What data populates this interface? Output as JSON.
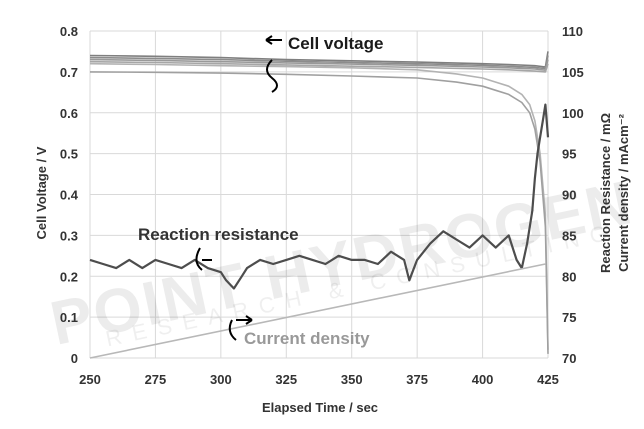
{
  "chart_data": {
    "type": "line",
    "xlabel": "Elapsed Time / sec",
    "ylabel_left": "Cell Voltage / V",
    "ylabel_right": "Reaction Resistance / mΩ\nCurrent density / mAcm⁻²",
    "xlim": [
      250,
      425
    ],
    "ylim_left": [
      0,
      0.8
    ],
    "ylim_right": [
      70,
      110
    ],
    "xticks": [
      "250",
      "275",
      "300",
      "325",
      "350",
      "375",
      "400",
      "425"
    ],
    "yticks_left": [
      "0",
      "0.1",
      "0.2",
      "0.3",
      "0.4",
      "0.5",
      "0.6",
      "0.7",
      "0.8"
    ],
    "yticks_right": [
      "70",
      "75",
      "80",
      "85",
      "90",
      "95",
      "100",
      "105",
      "110"
    ],
    "grid": true,
    "series": [
      {
        "axis": "left",
        "color": "#7f7f7f",
        "x": [
          250,
          275,
          300,
          325,
          350,
          375,
          400,
          410,
          420,
          424,
          425
        ],
        "y": [
          0.74,
          0.738,
          0.735,
          0.73,
          0.727,
          0.724,
          0.72,
          0.718,
          0.715,
          0.712,
          0.75
        ]
      },
      {
        "axis": "left",
        "color": "#8c8c8c",
        "x": [
          250,
          275,
          300,
          325,
          350,
          375,
          400,
          410,
          420,
          424,
          425
        ],
        "y": [
          0.735,
          0.733,
          0.73,
          0.726,
          0.723,
          0.72,
          0.716,
          0.714,
          0.711,
          0.708,
          0.74
        ]
      },
      {
        "axis": "left",
        "color": "#999999",
        "x": [
          250,
          275,
          300,
          325,
          350,
          375,
          400,
          410,
          420,
          424,
          425
        ],
        "y": [
          0.73,
          0.728,
          0.725,
          0.722,
          0.719,
          0.716,
          0.712,
          0.71,
          0.707,
          0.704,
          0.73
        ]
      },
      {
        "axis": "left",
        "color": "#a6a6a6",
        "x": [
          250,
          275,
          300,
          325,
          350,
          375,
          400,
          410,
          420,
          424,
          425
        ],
        "y": [
          0.725,
          0.723,
          0.72,
          0.717,
          0.714,
          0.711,
          0.707,
          0.705,
          0.702,
          0.7,
          0.72
        ]
      },
      {
        "axis": "left",
        "color": "#b3b3b3",
        "x": [
          250,
          275,
          300,
          325,
          350,
          375,
          390,
          400,
          405,
          410,
          415,
          418,
          420,
          422,
          424,
          425
        ],
        "y": [
          0.72,
          0.718,
          0.715,
          0.713,
          0.71,
          0.705,
          0.695,
          0.685,
          0.675,
          0.665,
          0.645,
          0.62,
          0.58,
          0.5,
          0.35,
          0.02
        ]
      },
      {
        "axis": "left",
        "color": "#a0a0a0",
        "x": [
          250,
          275,
          300,
          325,
          350,
          375,
          390,
          400,
          405,
          410,
          415,
          418,
          420,
          422,
          424,
          425
        ],
        "y": [
          0.7,
          0.699,
          0.697,
          0.694,
          0.69,
          0.685,
          0.675,
          0.665,
          0.655,
          0.645,
          0.625,
          0.6,
          0.56,
          0.48,
          0.32,
          0.01
        ]
      },
      {
        "axis": "right",
        "color": "#4d4d4d",
        "x": [
          250,
          255,
          260,
          265,
          270,
          275,
          280,
          285,
          290,
          295,
          300,
          302,
          305,
          308,
          310,
          315,
          320,
          325,
          330,
          335,
          340,
          345,
          350,
          355,
          360,
          365,
          370,
          372,
          375,
          380,
          385,
          390,
          395,
          400,
          405,
          410,
          413,
          415,
          417,
          419,
          420,
          421,
          422,
          423,
          424,
          425
        ],
        "y": [
          82,
          81.5,
          81,
          82,
          81,
          82,
          81.5,
          81,
          82,
          81,
          80.5,
          79.5,
          78.5,
          80,
          81,
          82,
          81.5,
          82,
          82.5,
          82,
          81.5,
          82.5,
          82,
          82,
          81.5,
          83,
          82,
          79.5,
          82,
          84,
          85.5,
          84.5,
          83.5,
          85,
          83.5,
          85,
          82,
          81,
          84,
          88,
          92,
          95,
          97,
          99,
          101,
          97
        ]
      },
      {
        "axis": "right",
        "color": "#b8b8b8",
        "x": [
          250,
          424
        ],
        "y": [
          70,
          81.5
        ]
      }
    ],
    "annotations": [
      "Cell voltage",
      "Reaction resistance",
      "Current density"
    ]
  },
  "watermark": {
    "line1": "POINT HYDROGEN",
    "line2": "RESEARCH & CONSULTING"
  }
}
